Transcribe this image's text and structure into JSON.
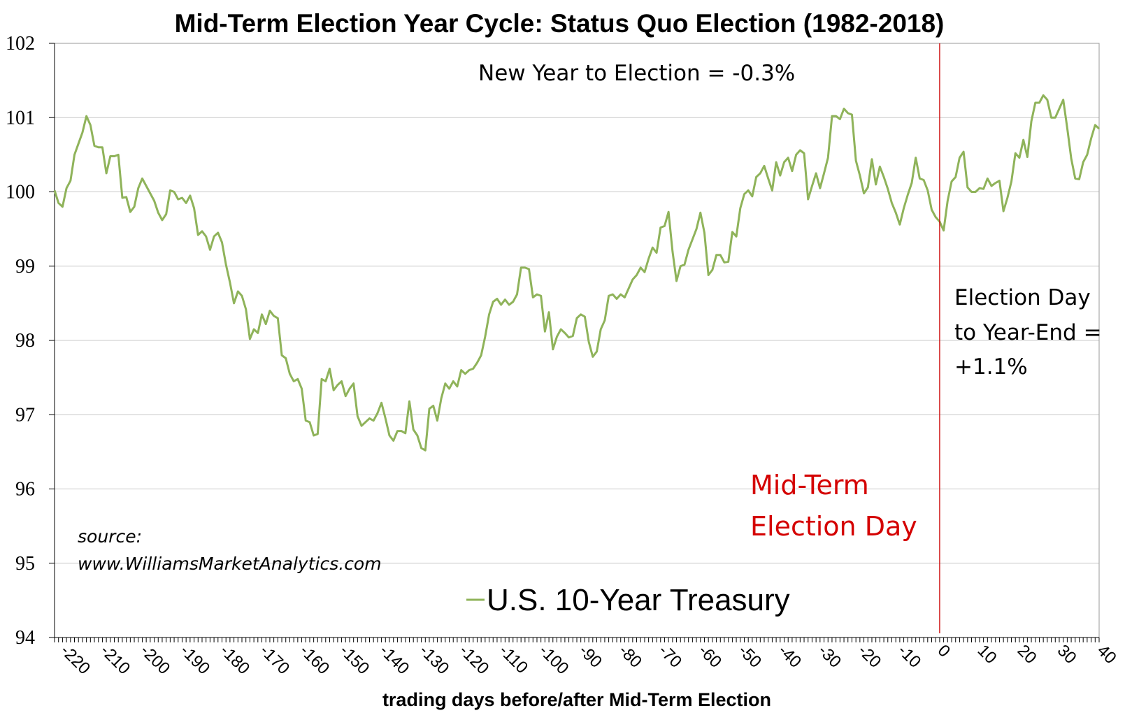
{
  "chart_data": {
    "type": "line",
    "title": "Mid-Term Election Year Cycle: Status Quo Election (1982-2018)",
    "xlabel": "trading days before/after Mid-Term Election",
    "ylabel": "",
    "xlim": [
      -222,
      40
    ],
    "ylim": [
      94,
      102
    ],
    "yticks": [
      94,
      95,
      96,
      97,
      98,
      99,
      100,
      101,
      102
    ],
    "xticks": [
      -220,
      -210,
      -200,
      -190,
      -180,
      -170,
      -160,
      -150,
      -140,
      -130,
      -120,
      -110,
      -100,
      -90,
      -80,
      -70,
      -60,
      -50,
      -40,
      -30,
      -20,
      -10,
      0,
      10,
      20,
      30,
      40
    ],
    "xtick_labels": [
      "-220",
      "-210",
      "-200",
      "-190",
      "-180",
      "-170",
      "-160",
      "-150",
      "-140",
      "-130",
      "-120",
      "-110",
      "-100",
      "-90",
      "-80",
      "-70",
      "-60",
      "-50",
      "-40",
      "-30",
      "-20",
      "-10",
      "0",
      "10",
      "20",
      "30",
      "40"
    ],
    "grid": true,
    "legend_position": "bottom-center",
    "series": [
      {
        "name": "U.S. 10-Year Treasury",
        "color": "#8fb35a",
        "points": [
          [
            -222,
            100.02
          ],
          [
            -221,
            99.85
          ],
          [
            -220,
            99.8
          ],
          [
            -219,
            100.05
          ],
          [
            -218,
            100.15
          ],
          [
            -217,
            100.5
          ],
          [
            -216,
            100.65
          ],
          [
            -215,
            100.8
          ],
          [
            -214,
            101.02
          ],
          [
            -213,
            100.9
          ],
          [
            -212,
            100.62
          ],
          [
            -211,
            100.6
          ],
          [
            -210,
            100.6
          ],
          [
            -209,
            100.25
          ],
          [
            -208,
            100.48
          ],
          [
            -207,
            100.48
          ],
          [
            -206,
            100.5
          ],
          [
            -205,
            99.92
          ],
          [
            -204,
            99.93
          ],
          [
            -203,
            99.73
          ],
          [
            -202,
            99.8
          ],
          [
            -201,
            100.05
          ],
          [
            -200,
            100.18
          ],
          [
            -199,
            100.08
          ],
          [
            -198,
            99.98
          ],
          [
            -197,
            99.88
          ],
          [
            -196,
            99.72
          ],
          [
            -195,
            99.62
          ],
          [
            -194,
            99.7
          ],
          [
            -193,
            100.02
          ],
          [
            -192,
            100.0
          ],
          [
            -191,
            99.9
          ],
          [
            -190,
            99.92
          ],
          [
            -189,
            99.85
          ],
          [
            -188,
            99.95
          ],
          [
            -187,
            99.78
          ],
          [
            -186,
            99.42
          ],
          [
            -185,
            99.47
          ],
          [
            -184,
            99.4
          ],
          [
            -183,
            99.22
          ],
          [
            -182,
            99.4
          ],
          [
            -181,
            99.45
          ],
          [
            -180,
            99.32
          ],
          [
            -179,
            99.02
          ],
          [
            -178,
            98.78
          ],
          [
            -177,
            98.5
          ],
          [
            -176,
            98.66
          ],
          [
            -175,
            98.6
          ],
          [
            -174,
            98.42
          ],
          [
            -173,
            98.02
          ],
          [
            -172,
            98.15
          ],
          [
            -171,
            98.1
          ],
          [
            -170,
            98.35
          ],
          [
            -169,
            98.22
          ],
          [
            -168,
            98.4
          ],
          [
            -167,
            98.33
          ],
          [
            -166,
            98.3
          ],
          [
            -165,
            97.8
          ],
          [
            -164,
            97.76
          ],
          [
            -163,
            97.55
          ],
          [
            -162,
            97.45
          ],
          [
            -161,
            97.48
          ],
          [
            -160,
            97.35
          ],
          [
            -159,
            96.92
          ],
          [
            -158,
            96.9
          ],
          [
            -157,
            96.72
          ],
          [
            -156,
            96.74
          ],
          [
            -155,
            97.48
          ],
          [
            -154,
            97.45
          ],
          [
            -153,
            97.62
          ],
          [
            -152,
            97.33
          ],
          [
            -151,
            97.4
          ],
          [
            -150,
            97.45
          ],
          [
            -149,
            97.25
          ],
          [
            -148,
            97.35
          ],
          [
            -147,
            97.42
          ],
          [
            -146,
            96.98
          ],
          [
            -145,
            96.85
          ],
          [
            -144,
            96.9
          ],
          [
            -143,
            96.95
          ],
          [
            -142,
            96.92
          ],
          [
            -141,
            97.02
          ],
          [
            -140,
            97.16
          ],
          [
            -139,
            96.95
          ],
          [
            -138,
            96.72
          ],
          [
            -137,
            96.65
          ],
          [
            -136,
            96.78
          ],
          [
            -135,
            96.78
          ],
          [
            -134,
            96.75
          ],
          [
            -133,
            97.18
          ],
          [
            -132,
            96.8
          ],
          [
            -131,
            96.72
          ],
          [
            -130,
            96.55
          ],
          [
            -129,
            96.52
          ],
          [
            -128,
            97.08
          ],
          [
            -127,
            97.12
          ],
          [
            -126,
            96.92
          ],
          [
            -125,
            97.22
          ],
          [
            -124,
            97.42
          ],
          [
            -123,
            97.35
          ],
          [
            -122,
            97.45
          ],
          [
            -121,
            97.38
          ],
          [
            -120,
            97.6
          ],
          [
            -119,
            97.55
          ],
          [
            -118,
            97.6
          ],
          [
            -117,
            97.62
          ],
          [
            -116,
            97.7
          ],
          [
            -115,
            97.8
          ],
          [
            -114,
            98.05
          ],
          [
            -113,
            98.35
          ],
          [
            -112,
            98.52
          ],
          [
            -111,
            98.56
          ],
          [
            -110,
            98.48
          ],
          [
            -109,
            98.55
          ],
          [
            -108,
            98.48
          ],
          [
            -107,
            98.52
          ],
          [
            -106,
            98.62
          ],
          [
            -105,
            98.98
          ],
          [
            -104,
            98.98
          ],
          [
            -103,
            98.96
          ],
          [
            -102,
            98.58
          ],
          [
            -101,
            98.62
          ],
          [
            -100,
            98.6
          ],
          [
            -99,
            98.12
          ],
          [
            -98,
            98.38
          ],
          [
            -97,
            97.88
          ],
          [
            -96,
            98.05
          ],
          [
            -95,
            98.15
          ],
          [
            -94,
            98.1
          ],
          [
            -93,
            98.04
          ],
          [
            -92,
            98.06
          ],
          [
            -91,
            98.3
          ],
          [
            -90,
            98.35
          ],
          [
            -89,
            98.32
          ],
          [
            -88,
            97.98
          ],
          [
            -87,
            97.78
          ],
          [
            -86,
            97.85
          ],
          [
            -85,
            98.15
          ],
          [
            -84,
            98.27
          ],
          [
            -83,
            98.6
          ],
          [
            -82,
            98.62
          ],
          [
            -81,
            98.56
          ],
          [
            -80,
            98.62
          ],
          [
            -79,
            98.58
          ],
          [
            -78,
            98.7
          ],
          [
            -77,
            98.82
          ],
          [
            -76,
            98.88
          ],
          [
            -75,
            98.98
          ],
          [
            -74,
            98.92
          ],
          [
            -73,
            99.1
          ],
          [
            -72,
            99.25
          ],
          [
            -71,
            99.18
          ],
          [
            -70,
            99.52
          ],
          [
            -69,
            99.54
          ],
          [
            -68,
            99.73
          ],
          [
            -67,
            99.2
          ],
          [
            -66,
            98.8
          ],
          [
            -65,
            99.0
          ],
          [
            -64,
            99.02
          ],
          [
            -63,
            99.22
          ],
          [
            -62,
            99.36
          ],
          [
            -61,
            99.5
          ],
          [
            -60,
            99.72
          ],
          [
            -59,
            99.45
          ],
          [
            -58,
            98.88
          ],
          [
            -57,
            98.95
          ],
          [
            -56,
            99.15
          ],
          [
            -55,
            99.15
          ],
          [
            -54,
            99.05
          ],
          [
            -53,
            99.06
          ],
          [
            -52,
            99.46
          ],
          [
            -51,
            99.4
          ],
          [
            -50,
            99.78
          ],
          [
            -49,
            99.97
          ],
          [
            -48,
            100.02
          ],
          [
            -47,
            99.94
          ],
          [
            -46,
            100.2
          ],
          [
            -45,
            100.25
          ],
          [
            -44,
            100.35
          ],
          [
            -43,
            100.18
          ],
          [
            -42,
            100.02
          ],
          [
            -41,
            100.4
          ],
          [
            -40,
            100.22
          ],
          [
            -39,
            100.4
          ],
          [
            -38,
            100.46
          ],
          [
            -37,
            100.28
          ],
          [
            -36,
            100.5
          ],
          [
            -35,
            100.56
          ],
          [
            -34,
            100.52
          ],
          [
            -33,
            99.9
          ],
          [
            -32,
            100.08
          ],
          [
            -31,
            100.25
          ],
          [
            -30,
            100.05
          ],
          [
            -29,
            100.25
          ],
          [
            -28,
            100.46
          ],
          [
            -27,
            101.02
          ],
          [
            -26,
            101.02
          ],
          [
            -25,
            100.98
          ],
          [
            -24,
            101.12
          ],
          [
            -23,
            101.06
          ],
          [
            -22,
            101.04
          ],
          [
            -21,
            100.42
          ],
          [
            -20,
            100.22
          ],
          [
            -19,
            99.98
          ],
          [
            -18,
            100.06
          ],
          [
            -17,
            100.44
          ],
          [
            -16,
            100.1
          ],
          [
            -15,
            100.34
          ],
          [
            -14,
            100.2
          ],
          [
            -13,
            100.04
          ],
          [
            -12,
            99.85
          ],
          [
            -11,
            99.72
          ],
          [
            -10,
            99.56
          ],
          [
            -9,
            99.78
          ],
          [
            -8,
            99.96
          ],
          [
            -7,
            100.12
          ],
          [
            -6,
            100.46
          ],
          [
            -5,
            100.18
          ],
          [
            -4,
            100.16
          ],
          [
            -3,
            100.02
          ],
          [
            -2,
            99.76
          ],
          [
            -1,
            99.66
          ],
          [
            0,
            99.6
          ],
          [
            1,
            99.48
          ],
          [
            2,
            99.88
          ],
          [
            3,
            100.14
          ],
          [
            4,
            100.2
          ],
          [
            5,
            100.46
          ],
          [
            6,
            100.54
          ],
          [
            7,
            100.06
          ],
          [
            8,
            100.0
          ],
          [
            9,
            100.0
          ],
          [
            10,
            100.05
          ],
          [
            11,
            100.04
          ],
          [
            12,
            100.18
          ],
          [
            13,
            100.08
          ],
          [
            14,
            100.12
          ],
          [
            15,
            100.15
          ],
          [
            16,
            99.74
          ],
          [
            17,
            99.92
          ],
          [
            18,
            100.14
          ],
          [
            19,
            100.52
          ],
          [
            20,
            100.46
          ],
          [
            21,
            100.7
          ],
          [
            22,
            100.47
          ],
          [
            23,
            100.95
          ],
          [
            24,
            101.2
          ],
          [
            25,
            101.2
          ],
          [
            26,
            101.3
          ],
          [
            27,
            101.24
          ],
          [
            28,
            101.0
          ],
          [
            29,
            101.0
          ],
          [
            30,
            101.12
          ],
          [
            31,
            101.24
          ],
          [
            32,
            100.86
          ],
          [
            33,
            100.45
          ],
          [
            34,
            100.18
          ],
          [
            35,
            100.17
          ],
          [
            36,
            100.4
          ],
          [
            37,
            100.5
          ],
          [
            38,
            100.72
          ],
          [
            39,
            100.9
          ],
          [
            40,
            100.85
          ]
        ]
      }
    ],
    "annotations": {
      "new_year_to_election": "New Year to Election = -0.3%",
      "election_to_year_end_line1": "Election Day",
      "election_to_year_end_line2": "to Year-End =",
      "election_to_year_end_line3": "+1.1%",
      "election_day_line1": "Mid-Term",
      "election_day_line2": "Election Day",
      "source_line1": "source:",
      "source_line2": "www.WilliamsMarketAnalytics.com"
    },
    "election_day_x": 0,
    "election_line_color": "#cc0000",
    "grid_color": "#c8c8c8"
  }
}
